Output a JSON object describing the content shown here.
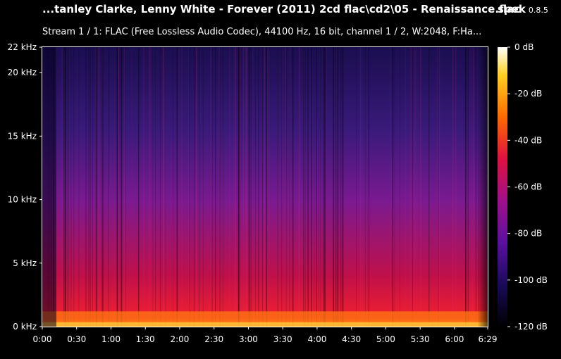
{
  "header": {
    "title": "...tanley Clarke, Lenny White - Forever (2011) 2cd flac\\cd2\\05 - Renaissance.flac",
    "app_name": "spek",
    "app_version": "0.8.5",
    "subtitle": "Stream 1 / 1: FLAC (Free Lossless Audio Codec), 44100 Hz, 16 bit, channel 1 / 2, W:2048, F:Ha..."
  },
  "chart_data": {
    "type": "heatmap",
    "title": "...tanley Clarke, Lenny White - Forever (2011) 2cd flac\\cd2\\05 - Renaissance.flac",
    "xlabel": "",
    "ylabel": "",
    "x_unit": "time",
    "y_unit": "kHz",
    "xlim": [
      0,
      389
    ],
    "ylim": [
      0,
      22
    ],
    "x_ticks": [
      {
        "value": 0,
        "label": "0:00"
      },
      {
        "value": 30,
        "label": "0:30"
      },
      {
        "value": 60,
        "label": "1:00"
      },
      {
        "value": 90,
        "label": "1:30"
      },
      {
        "value": 120,
        "label": "2:00"
      },
      {
        "value": 150,
        "label": "2:30"
      },
      {
        "value": 180,
        "label": "3:00"
      },
      {
        "value": 210,
        "label": "3:30"
      },
      {
        "value": 240,
        "label": "4:00"
      },
      {
        "value": 270,
        "label": "4:30"
      },
      {
        "value": 300,
        "label": "5:00"
      },
      {
        "value": 330,
        "label": "5:30"
      },
      {
        "value": 360,
        "label": "6:00"
      },
      {
        "value": 389,
        "label": "6:29"
      }
    ],
    "y_ticks": [
      {
        "value": 0,
        "label": "0 kHz"
      },
      {
        "value": 5,
        "label": "5 kHz"
      },
      {
        "value": 10,
        "label": "10 kHz"
      },
      {
        "value": 15,
        "label": "15 kHz"
      },
      {
        "value": 20,
        "label": "20 kHz"
      },
      {
        "value": 22,
        "label": "22 kHz"
      }
    ],
    "colorbar": {
      "range_db": [
        -120,
        0
      ],
      "ticks": [
        {
          "value": 0,
          "label": "0 dB"
        },
        {
          "value": -20,
          "label": "-20 dB"
        },
        {
          "value": -40,
          "label": "-40 dB"
        },
        {
          "value": -60,
          "label": "-60 dB"
        },
        {
          "value": -80,
          "label": "-80 dB"
        },
        {
          "value": -100,
          "label": "-100 dB"
        },
        {
          "value": -120,
          "label": "-120 dB"
        }
      ],
      "colors": [
        "#000000",
        "#1a0a5a",
        "#5a10a0",
        "#a0108a",
        "#e01040",
        "#ff6a00",
        "#ffd020",
        "#ffffff"
      ]
    }
  }
}
